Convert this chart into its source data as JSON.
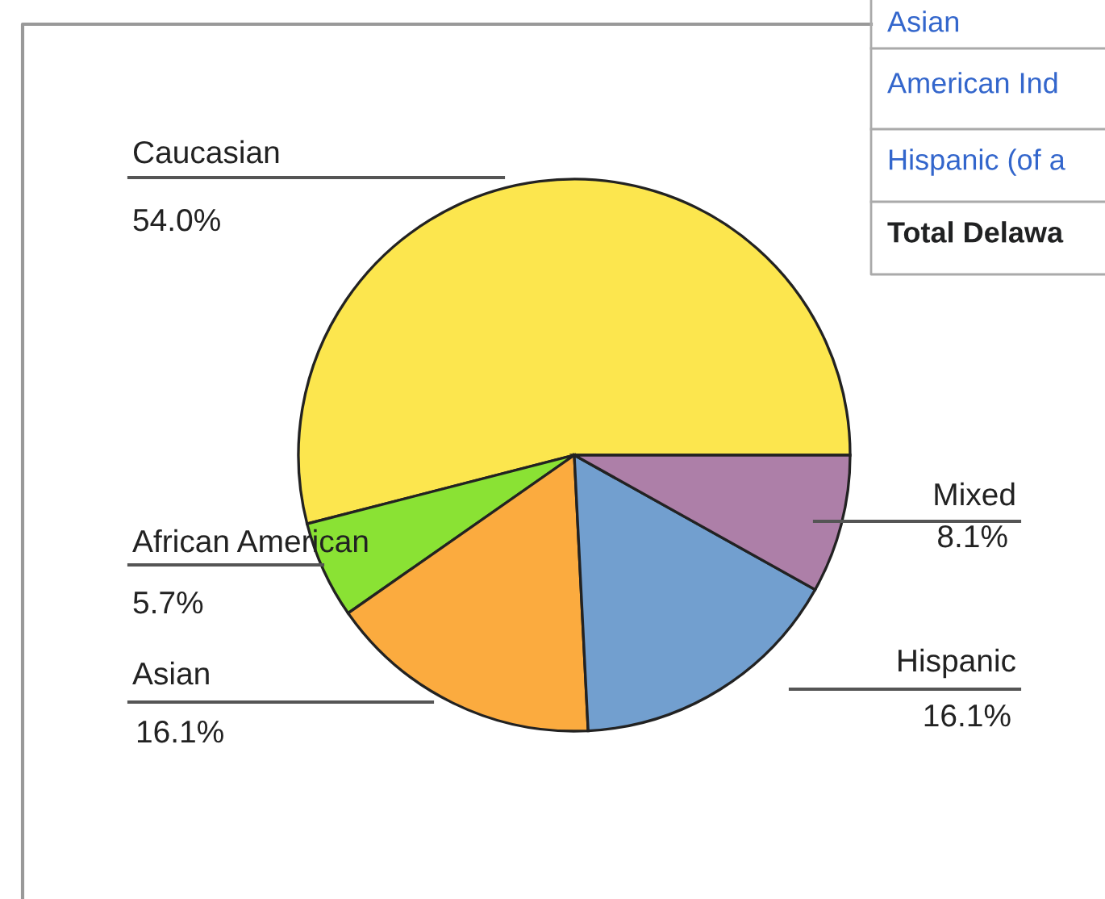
{
  "chart_data": {
    "type": "pie",
    "categories": [
      "Caucasian",
      "African American",
      "Asian",
      "Hispanic",
      "Mixed"
    ],
    "values": [
      54.0,
      5.7,
      16.1,
      16.1,
      8.1
    ],
    "value_labels": [
      "54.0%",
      "5.7%",
      "16.1%",
      "16.1%",
      "8.1%"
    ],
    "colors": [
      "#fce64e",
      "#8ae234",
      "#fbab3f",
      "#729fcf",
      "#ad7fa8"
    ],
    "legend": false,
    "annotations": [
      "Asian",
      "American Ind",
      "Hispanic (of a",
      "Total Delawa"
    ]
  }
}
